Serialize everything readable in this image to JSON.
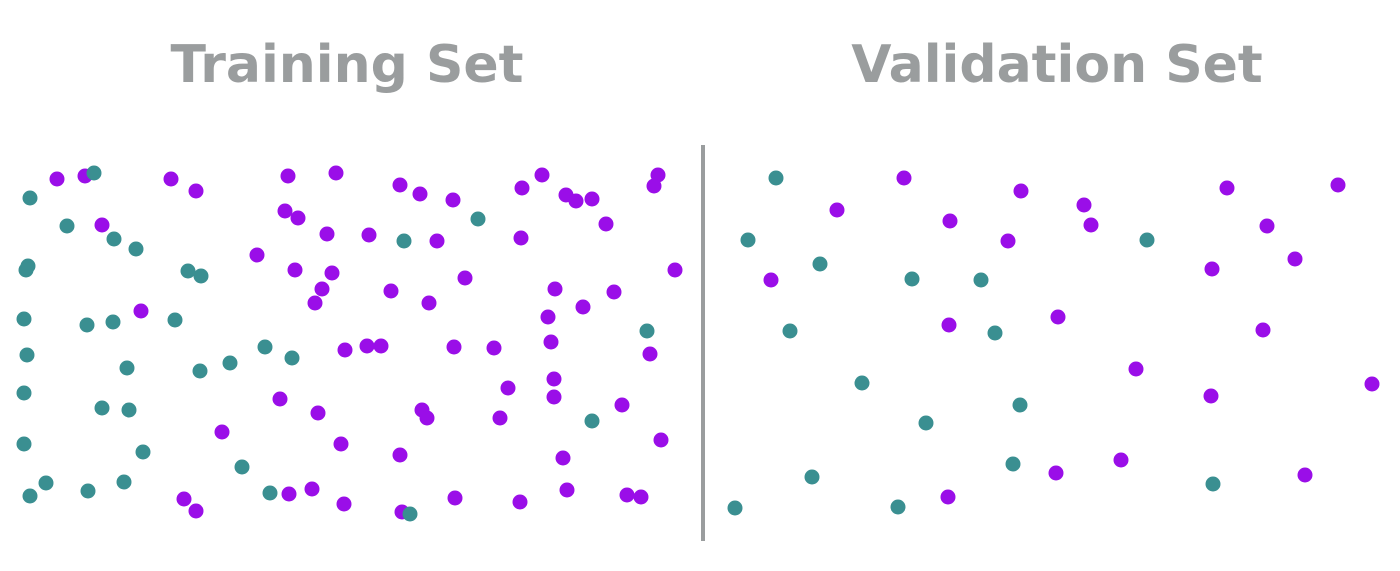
{
  "training": {
    "title": "Training Set"
  },
  "validation": {
    "title": "Validation Set"
  },
  "colors": {
    "title": "#9a9d9e",
    "divider": "#9a9d9e",
    "class_a": "#9a0ee8",
    "class_b": "#3a8f91"
  }
}
